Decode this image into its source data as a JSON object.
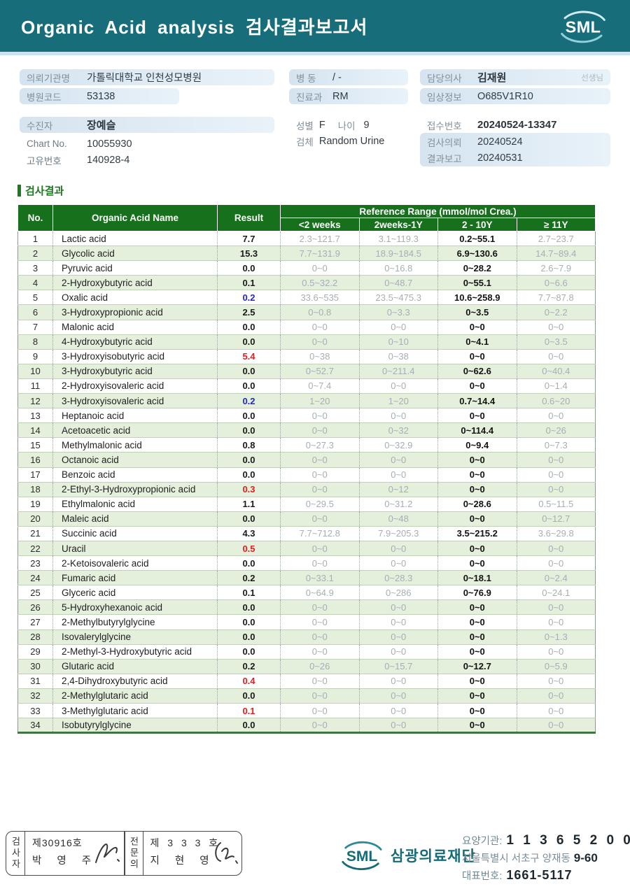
{
  "colors": {
    "teal": "#176e7a",
    "header_green": "#17701c",
    "row_green": "#e4efdc",
    "result_high_red": "#e01f1f",
    "result_low_blue": "#2028c8",
    "pill_blue": "#d5e4f0"
  },
  "header": {
    "title": "Organic Acid analysis 검사결과보고서",
    "logo_text": "SML"
  },
  "info": {
    "org_label": "의뢰기관명",
    "org_value": "가톨릭대학교 인천성모병원",
    "hospital_code_label": "병원코드",
    "hospital_code_value": "53138",
    "patient_label": "수진자",
    "patient_value": "장예슬",
    "chart_label": "Chart No.",
    "chart_value": "10055930",
    "uid_label": "고유번호",
    "uid_value": "140928-4",
    "ward_label": "병  동",
    "ward_value": "/ -",
    "dept_label": "진료과",
    "dept_value": "RM",
    "sex_label": "성별",
    "sex_value": "F",
    "age_label": "나이",
    "age_value": "9",
    "specimen_label": "검체",
    "specimen_value": "Random Urine",
    "doctor_label": "담당의사",
    "doctor_value": "김재원",
    "doctor_suffix": "선생님",
    "clinical_label": "임상정보",
    "clinical_value": "O685V1R10",
    "receipt_label": "접수번호",
    "receipt_value": "20240524-13347",
    "request_label": "검사의뢰",
    "request_value": "20240524",
    "report_label": "결과보고",
    "report_value": "20240531"
  },
  "results": {
    "section_title": "검사결과",
    "columns": {
      "no": "No.",
      "name": "Organic Acid Name",
      "result": "Result",
      "ref_group": "Reference Range (mmol/mol Crea.)",
      "ref_cols": [
        "<2 weeks",
        "2weeks-1Y",
        "2 - 10Y",
        "≥ 11Y"
      ]
    },
    "rows": [
      {
        "no": 1,
        "name": "Lactic acid",
        "result": "7.7",
        "flag": "normal",
        "refs": [
          "2.3~121.7",
          "3.1~119.3",
          "0.2~55.1",
          "2.7~23.7"
        ]
      },
      {
        "no": 2,
        "name": "Glycolic acid",
        "result": "15.3",
        "flag": "normal",
        "refs": [
          "7.7~131.9",
          "18.9~184.5",
          "6.9~130.6",
          "14.7~89.4"
        ]
      },
      {
        "no": 3,
        "name": "Pyruvic acid",
        "result": "0.0",
        "flag": "normal",
        "refs": [
          "0~0",
          "0~16.8",
          "0~28.2",
          "2.6~7.9"
        ]
      },
      {
        "no": 4,
        "name": "2-Hydroxybutyric acid",
        "result": "0.1",
        "flag": "normal",
        "refs": [
          "0.5~32.2",
          "0~48.7",
          "0~55.1",
          "0~6.6"
        ]
      },
      {
        "no": 5,
        "name": "Oxalic acid",
        "result": "0.2",
        "flag": "low",
        "refs": [
          "33.6~535",
          "23.5~475.3",
          "10.6~258.9",
          "7.7~87.8"
        ]
      },
      {
        "no": 6,
        "name": "3-Hydroxypropionic acid",
        "result": "2.5",
        "flag": "normal",
        "refs": [
          "0~0.8",
          "0~3.3",
          "0~3.5",
          "0~2.2"
        ]
      },
      {
        "no": 7,
        "name": "Malonic acid",
        "result": "0.0",
        "flag": "normal",
        "refs": [
          "0~0",
          "0~0",
          "0~0",
          "0~0"
        ]
      },
      {
        "no": 8,
        "name": "4-Hydroxybutyric acid",
        "result": "0.0",
        "flag": "normal",
        "refs": [
          "0~0",
          "0~10",
          "0~4.1",
          "0~3.5"
        ]
      },
      {
        "no": 9,
        "name": "3-Hydroxyisobutyric acid",
        "result": "5.4",
        "flag": "high",
        "refs": [
          "0~38",
          "0~38",
          "0~0",
          "0~0"
        ]
      },
      {
        "no": 10,
        "name": "3-Hydroxybutyric acid",
        "result": "0.0",
        "flag": "normal",
        "refs": [
          "0~52.7",
          "0~211.4",
          "0~62.6",
          "0~40.4"
        ]
      },
      {
        "no": 11,
        "name": "2-Hydroxyisovaleric acid",
        "result": "0.0",
        "flag": "normal",
        "refs": [
          "0~7.4",
          "0~0",
          "0~0",
          "0~1.4"
        ]
      },
      {
        "no": 12,
        "name": "3-Hydroxyisovaleric acid",
        "result": "0.2",
        "flag": "low",
        "refs": [
          "1~20",
          "1~20",
          "0.7~14.4",
          "0.6~20"
        ]
      },
      {
        "no": 13,
        "name": "Heptanoic acid",
        "result": "0.0",
        "flag": "normal",
        "refs": [
          "0~0",
          "0~0",
          "0~0",
          "0~0"
        ]
      },
      {
        "no": 14,
        "name": "Acetoacetic acid",
        "result": "0.0",
        "flag": "normal",
        "refs": [
          "0~0",
          "0~32",
          "0~114.4",
          "0~26"
        ]
      },
      {
        "no": 15,
        "name": "Methylmalonic acid",
        "result": "0.8",
        "flag": "normal",
        "refs": [
          "0~27.3",
          "0~32.9",
          "0~9.4",
          "0~7.3"
        ]
      },
      {
        "no": 16,
        "name": "Octanoic acid",
        "result": "0.0",
        "flag": "normal",
        "refs": [
          "0~0",
          "0~0",
          "0~0",
          "0~0"
        ]
      },
      {
        "no": 17,
        "name": "Benzoic acid",
        "result": "0.0",
        "flag": "normal",
        "refs": [
          "0~0",
          "0~0",
          "0~0",
          "0~0"
        ]
      },
      {
        "no": 18,
        "name": "2-Ethyl-3-Hydroxypropionic acid",
        "result": "0.3",
        "flag": "high",
        "refs": [
          "0~0",
          "0~12",
          "0~0",
          "0~0"
        ]
      },
      {
        "no": 19,
        "name": "Ethylmalonic acid",
        "result": "1.1",
        "flag": "normal",
        "refs": [
          "0~29.5",
          "0~31.2",
          "0~28.6",
          "0.5~11.5"
        ]
      },
      {
        "no": 20,
        "name": "Maleic acid",
        "result": "0.0",
        "flag": "normal",
        "refs": [
          "0~0",
          "0~48",
          "0~0",
          "0~12.7"
        ]
      },
      {
        "no": 21,
        "name": "Succinic acid",
        "result": "4.3",
        "flag": "normal",
        "refs": [
          "7.7~712.8",
          "7.9~205.3",
          "3.5~215.2",
          "3.6~29.8"
        ]
      },
      {
        "no": 22,
        "name": "Uracil",
        "result": "0.5",
        "flag": "high",
        "refs": [
          "0~0",
          "0~0",
          "0~0",
          "0~0"
        ]
      },
      {
        "no": 23,
        "name": "2-Ketoisovaleric acid",
        "result": "0.0",
        "flag": "normal",
        "refs": [
          "0~0",
          "0~0",
          "0~0",
          "0~0"
        ]
      },
      {
        "no": 24,
        "name": "Fumaric acid",
        "result": "0.2",
        "flag": "normal",
        "refs": [
          "0~33.1",
          "0~28.3",
          "0~18.1",
          "0~2.4"
        ]
      },
      {
        "no": 25,
        "name": "Glyceric acid",
        "result": "0.1",
        "flag": "normal",
        "refs": [
          "0~64.9",
          "0~286",
          "0~76.9",
          "0~24.1"
        ]
      },
      {
        "no": 26,
        "name": "5-Hydroxyhexanoic acid",
        "result": "0.0",
        "flag": "normal",
        "refs": [
          "0~0",
          "0~0",
          "0~0",
          "0~0"
        ]
      },
      {
        "no": 27,
        "name": "2-Methylbutyrylglycine",
        "result": "0.0",
        "flag": "normal",
        "refs": [
          "0~0",
          "0~0",
          "0~0",
          "0~0"
        ]
      },
      {
        "no": 28,
        "name": "Isovalerylglycine",
        "result": "0.0",
        "flag": "normal",
        "refs": [
          "0~0",
          "0~0",
          "0~0",
          "0~1.3"
        ]
      },
      {
        "no": 29,
        "name": "2-Methyl-3-Hydroxybutyric acid",
        "result": "0.0",
        "flag": "normal",
        "refs": [
          "0~0",
          "0~0",
          "0~0",
          "0~0"
        ]
      },
      {
        "no": 30,
        "name": "Glutaric acid",
        "result": "0.2",
        "flag": "normal",
        "refs": [
          "0~26",
          "0~15.7",
          "0~12.7",
          "0~5.9"
        ]
      },
      {
        "no": 31,
        "name": "2,4-Dihydroxybutyric acid",
        "result": "0.4",
        "flag": "high",
        "refs": [
          "0~0",
          "0~0",
          "0~0",
          "0~0"
        ]
      },
      {
        "no": 32,
        "name": "2-Methylglutaric acid",
        "result": "0.0",
        "flag": "normal",
        "refs": [
          "0~0",
          "0~0",
          "0~0",
          "0~0"
        ]
      },
      {
        "no": 33,
        "name": "3-Methylglutaric acid",
        "result": "0.1",
        "flag": "high",
        "refs": [
          "0~0",
          "0~0",
          "0~0",
          "0~0"
        ]
      },
      {
        "no": 34,
        "name": "Isobutyrylglycine",
        "result": "0.0",
        "flag": "normal",
        "refs": [
          "0~0",
          "0~0",
          "0~0",
          "0~0"
        ]
      }
    ]
  },
  "footer": {
    "examiner_label": "검사자",
    "examiner_no": "제30916호",
    "examiner_name": "박 영 주",
    "specialist_label": "전문의",
    "specialist_no": "제 3 3 3 호",
    "specialist_name": "지 현 영",
    "logo_text": "SML",
    "org_name": "삼광의료재단",
    "care_org_label": "요양기관:",
    "care_org_value": "1 1 3 6 5 2 0 0",
    "address": "서울특별시 서초구 양재동",
    "address_no": "9-60",
    "phone_label": "대표번호:",
    "phone_value": "1661-5117"
  }
}
